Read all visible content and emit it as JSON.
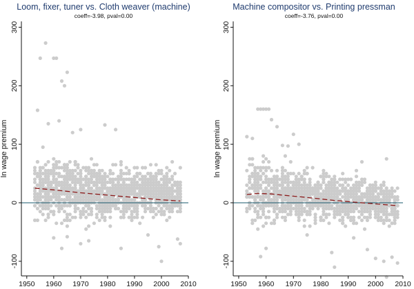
{
  "chart_data": [
    {
      "type": "scatter",
      "title": "Loom, fixer, tuner vs. Cloth weaver (machine)",
      "subtitle": "coeff=-3.98, pval=0.00",
      "xlabel": "",
      "ylabel": "ln wage premium",
      "xlim": [
        1948,
        2010
      ],
      "ylim": [
        -125,
        310
      ],
      "xticks": [
        "1950",
        "1960",
        "1970",
        "1980",
        "1990",
        "2000",
        "2010"
      ],
      "yticks": [
        "-100",
        "0",
        "100",
        "200",
        "300"
      ],
      "grid": false,
      "reference_line_y": 0,
      "points_color": "#cccccc",
      "trend_color": "#8b1a1a",
      "reference_color": "#1a5a6e",
      "scatter_range": {
        "x": [
          1953,
          2007
        ],
        "y_start": [
          -45,
          90
        ],
        "y_end": [
          -30,
          60
        ]
      },
      "outliers": [
        {
          "x": 1955,
          "y": 247
        },
        {
          "x": 1957,
          "y": 273
        },
        {
          "x": 1960,
          "y": 247
        },
        {
          "x": 1961,
          "y": 247
        },
        {
          "x": 1963,
          "y": 208
        },
        {
          "x": 1964,
          "y": 200
        },
        {
          "x": 1965,
          "y": 223
        },
        {
          "x": 1954,
          "y": 158
        },
        {
          "x": 1958,
          "y": 135
        },
        {
          "x": 1956,
          "y": 95
        },
        {
          "x": 1962,
          "y": 140
        },
        {
          "x": 1967,
          "y": 120
        },
        {
          "x": 1970,
          "y": 125
        },
        {
          "x": 1979,
          "y": 133
        },
        {
          "x": 1983,
          "y": 125
        },
        {
          "x": 1960,
          "y": -60
        },
        {
          "x": 1963,
          "y": -78
        },
        {
          "x": 1965,
          "y": -58
        },
        {
          "x": 1970,
          "y": -70
        },
        {
          "x": 1973,
          "y": -65
        },
        {
          "x": 1985,
          "y": -78
        },
        {
          "x": 1995,
          "y": -55
        },
        {
          "x": 1999,
          "y": -75
        },
        {
          "x": 2000,
          "y": -100
        },
        {
          "x": 2006,
          "y": -62
        },
        {
          "x": 2007,
          "y": -70
        },
        {
          "x": 2004,
          "y": 70
        }
      ],
      "trend": [
        {
          "x": 1953,
          "y": 25
        },
        {
          "x": 1960,
          "y": 22
        },
        {
          "x": 1970,
          "y": 17
        },
        {
          "x": 1980,
          "y": 13
        },
        {
          "x": 1990,
          "y": 9
        },
        {
          "x": 2000,
          "y": 5
        },
        {
          "x": 2007,
          "y": 3
        }
      ]
    },
    {
      "type": "scatter",
      "title": "Machine compositor vs. Printing pressman",
      "subtitle": "coeff=-3.76, pval=0.00",
      "xlabel": "",
      "ylabel": "ln wage premium",
      "xlim": [
        1948,
        2010
      ],
      "ylim": [
        -125,
        310
      ],
      "xticks": [
        "1950",
        "1960",
        "1970",
        "1980",
        "1990",
        "2000",
        "2010"
      ],
      "yticks": [
        "-100",
        "0",
        "100",
        "200",
        "300"
      ],
      "grid": false,
      "reference_line_y": 0,
      "points_color": "#cccccc",
      "trend_color": "#8b1a1a",
      "reference_color": "#1a5a6e",
      "scatter_range": {
        "x": [
          1953,
          2008
        ],
        "y_start": [
          -45,
          85
        ],
        "y_end": [
          -40,
          35
        ]
      },
      "outliers": [
        {
          "x": 1957,
          "y": 160
        },
        {
          "x": 1958,
          "y": 160
        },
        {
          "x": 1959,
          "y": 160
        },
        {
          "x": 1960,
          "y": 160
        },
        {
          "x": 1961,
          "y": 160
        },
        {
          "x": 1962,
          "y": 142
        },
        {
          "x": 1964,
          "y": 130
        },
        {
          "x": 1953,
          "y": 113
        },
        {
          "x": 1955,
          "y": 110
        },
        {
          "x": 1966,
          "y": 98
        },
        {
          "x": 1968,
          "y": 97
        },
        {
          "x": 1970,
          "y": 117
        },
        {
          "x": 1972,
          "y": 100
        },
        {
          "x": 1995,
          "y": 70
        },
        {
          "x": 2004,
          "y": 75
        },
        {
          "x": 1967,
          "y": 80
        },
        {
          "x": 1958,
          "y": -92
        },
        {
          "x": 1960,
          "y": -78
        },
        {
          "x": 1984,
          "y": -85
        },
        {
          "x": 1985,
          "y": -110
        },
        {
          "x": 1997,
          "y": -80
        },
        {
          "x": 2000,
          "y": -95
        },
        {
          "x": 2003,
          "y": -100
        },
        {
          "x": 2004,
          "y": -127
        },
        {
          "x": 2006,
          "y": -93
        },
        {
          "x": 2008,
          "y": -103
        },
        {
          "x": 1975,
          "y": -55
        },
        {
          "x": 1992,
          "y": -60
        }
      ],
      "trend": [
        {
          "x": 1953,
          "y": 14
        },
        {
          "x": 1957,
          "y": 16
        },
        {
          "x": 1962,
          "y": 15
        },
        {
          "x": 1966,
          "y": 13
        },
        {
          "x": 1975,
          "y": 9
        },
        {
          "x": 1985,
          "y": 4
        },
        {
          "x": 1995,
          "y": 0
        },
        {
          "x": 2008,
          "y": -5
        }
      ]
    }
  ]
}
